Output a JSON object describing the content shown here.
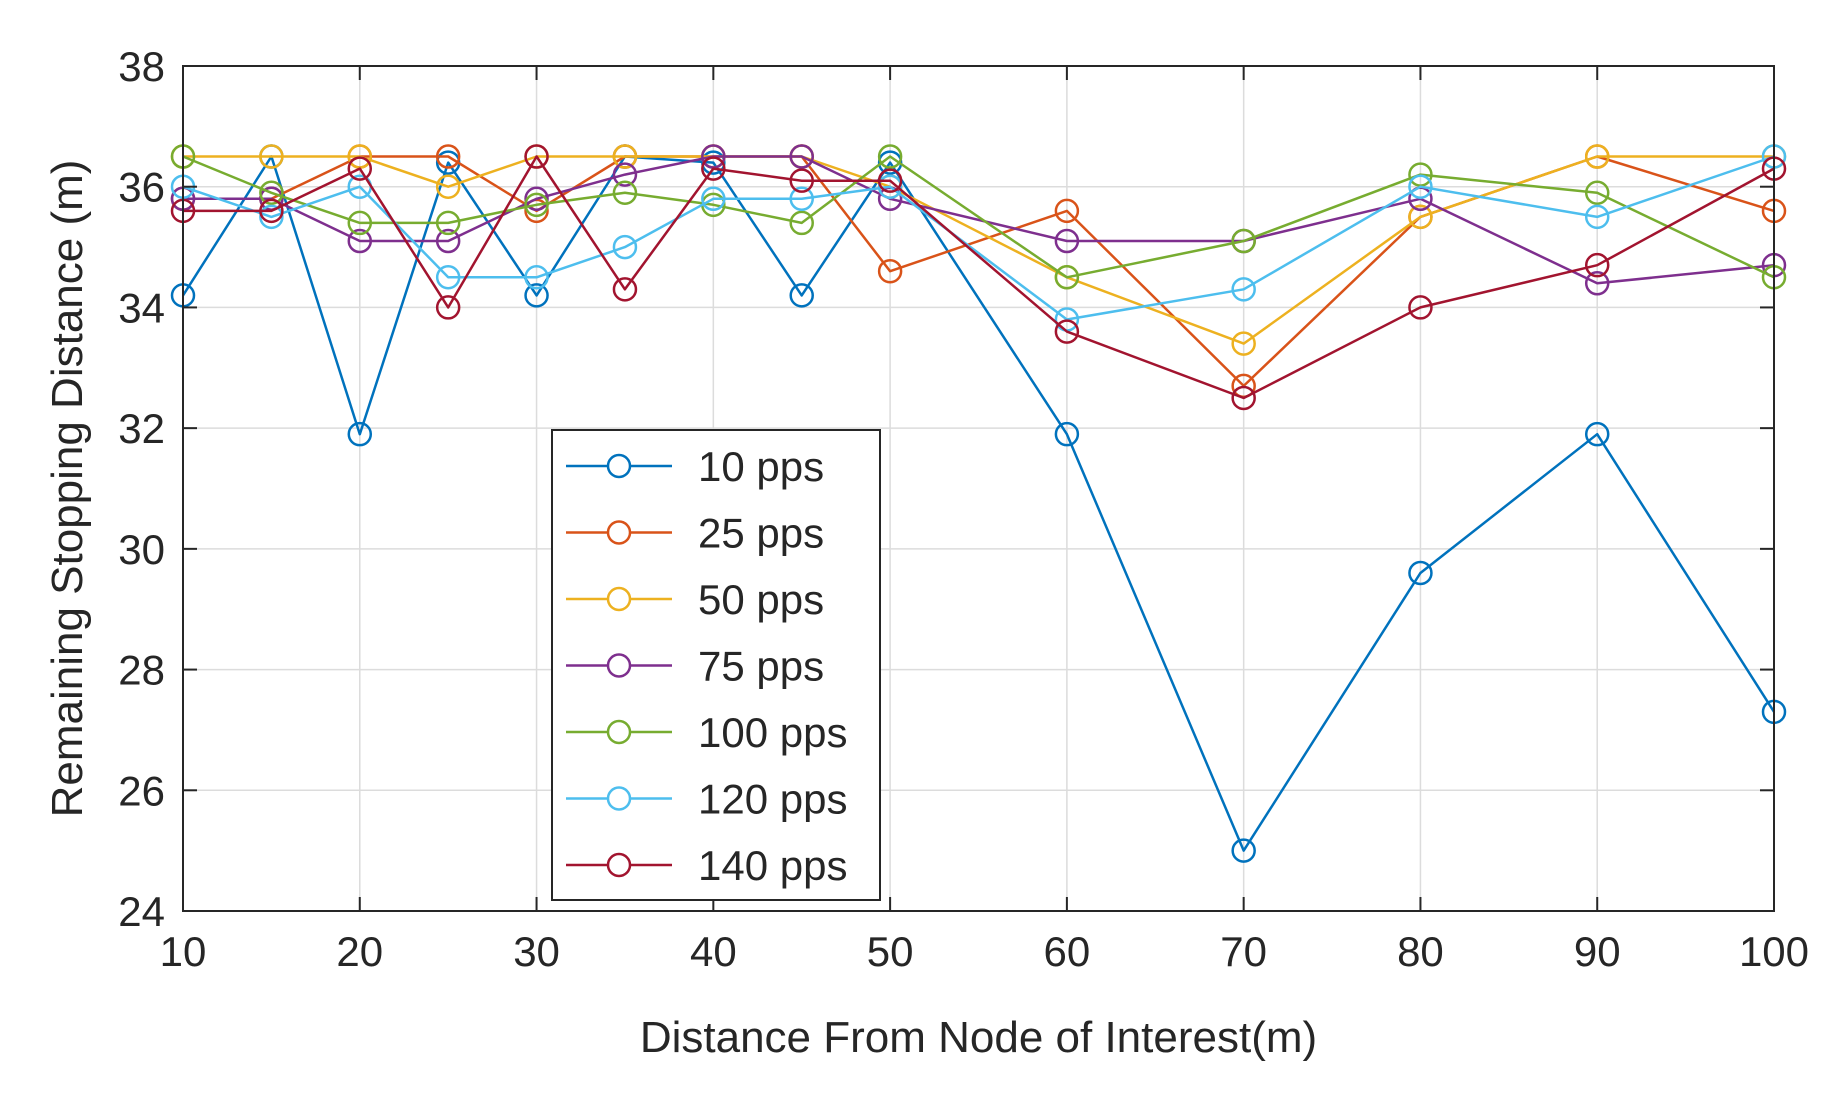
{
  "chart_data": {
    "type": "line",
    "title": "",
    "xlabel": "Distance From Node of Interest(m)",
    "ylabel": "Remaining Stopping Distance (m)",
    "xlim": [
      10,
      100
    ],
    "ylim": [
      24,
      38
    ],
    "grid": true,
    "legend_position": "center-left",
    "marker": "circle-open",
    "xticks": [
      10,
      20,
      30,
      40,
      50,
      60,
      70,
      80,
      90,
      100
    ],
    "xtick_labels": [
      "10",
      "20",
      "30",
      "40",
      "50",
      "60",
      "70",
      "80",
      "90",
      "100"
    ],
    "yticks": [
      24,
      26,
      28,
      30,
      32,
      34,
      36,
      38
    ],
    "ytick_labels": [
      "24",
      "26",
      "28",
      "30",
      "32",
      "34",
      "36",
      "38"
    ],
    "x": [
      10,
      15,
      20,
      25,
      30,
      35,
      40,
      45,
      50,
      60,
      70,
      80,
      90,
      100
    ],
    "series": [
      {
        "name": "10 pps",
        "color": "#0072BD",
        "values": [
          34.2,
          36.5,
          31.9,
          36.4,
          34.2,
          36.5,
          36.4,
          34.2,
          36.4,
          31.9,
          25.0,
          29.6,
          31.9,
          27.3
        ]
      },
      {
        "name": "25 pps",
        "color": "#D95319",
        "values": [
          35.8,
          35.8,
          36.5,
          36.5,
          35.6,
          36.5,
          36.5,
          36.5,
          34.6,
          35.6,
          32.7,
          35.5,
          36.5,
          35.6
        ]
      },
      {
        "name": "50 pps",
        "color": "#EDB120",
        "values": [
          36.5,
          36.5,
          36.5,
          36.0,
          36.5,
          36.5,
          36.5,
          36.5,
          36.0,
          34.5,
          33.4,
          35.5,
          36.5,
          36.5
        ]
      },
      {
        "name": "75 pps",
        "color": "#7E2F8E",
        "values": [
          35.8,
          35.8,
          35.1,
          35.1,
          35.8,
          36.2,
          36.5,
          36.5,
          35.8,
          35.1,
          35.1,
          35.8,
          34.4,
          34.7
        ]
      },
      {
        "name": "100 pps",
        "color": "#77AC30",
        "values": [
          36.5,
          35.9,
          35.4,
          35.4,
          35.7,
          35.9,
          35.7,
          35.4,
          36.5,
          34.5,
          35.1,
          36.2,
          35.9,
          34.5
        ]
      },
      {
        "name": "120 pps",
        "color": "#4DBEEE",
        "values": [
          36.0,
          35.5,
          36.0,
          34.5,
          34.5,
          35.0,
          35.8,
          35.8,
          36.0,
          33.8,
          34.3,
          36.0,
          35.5,
          36.5
        ]
      },
      {
        "name": "140 pps",
        "color": "#A2142F",
        "values": [
          35.6,
          35.6,
          36.3,
          34.0,
          36.5,
          34.3,
          36.3,
          36.1,
          36.1,
          33.6,
          32.5,
          34.0,
          34.7,
          36.3
        ]
      }
    ]
  }
}
